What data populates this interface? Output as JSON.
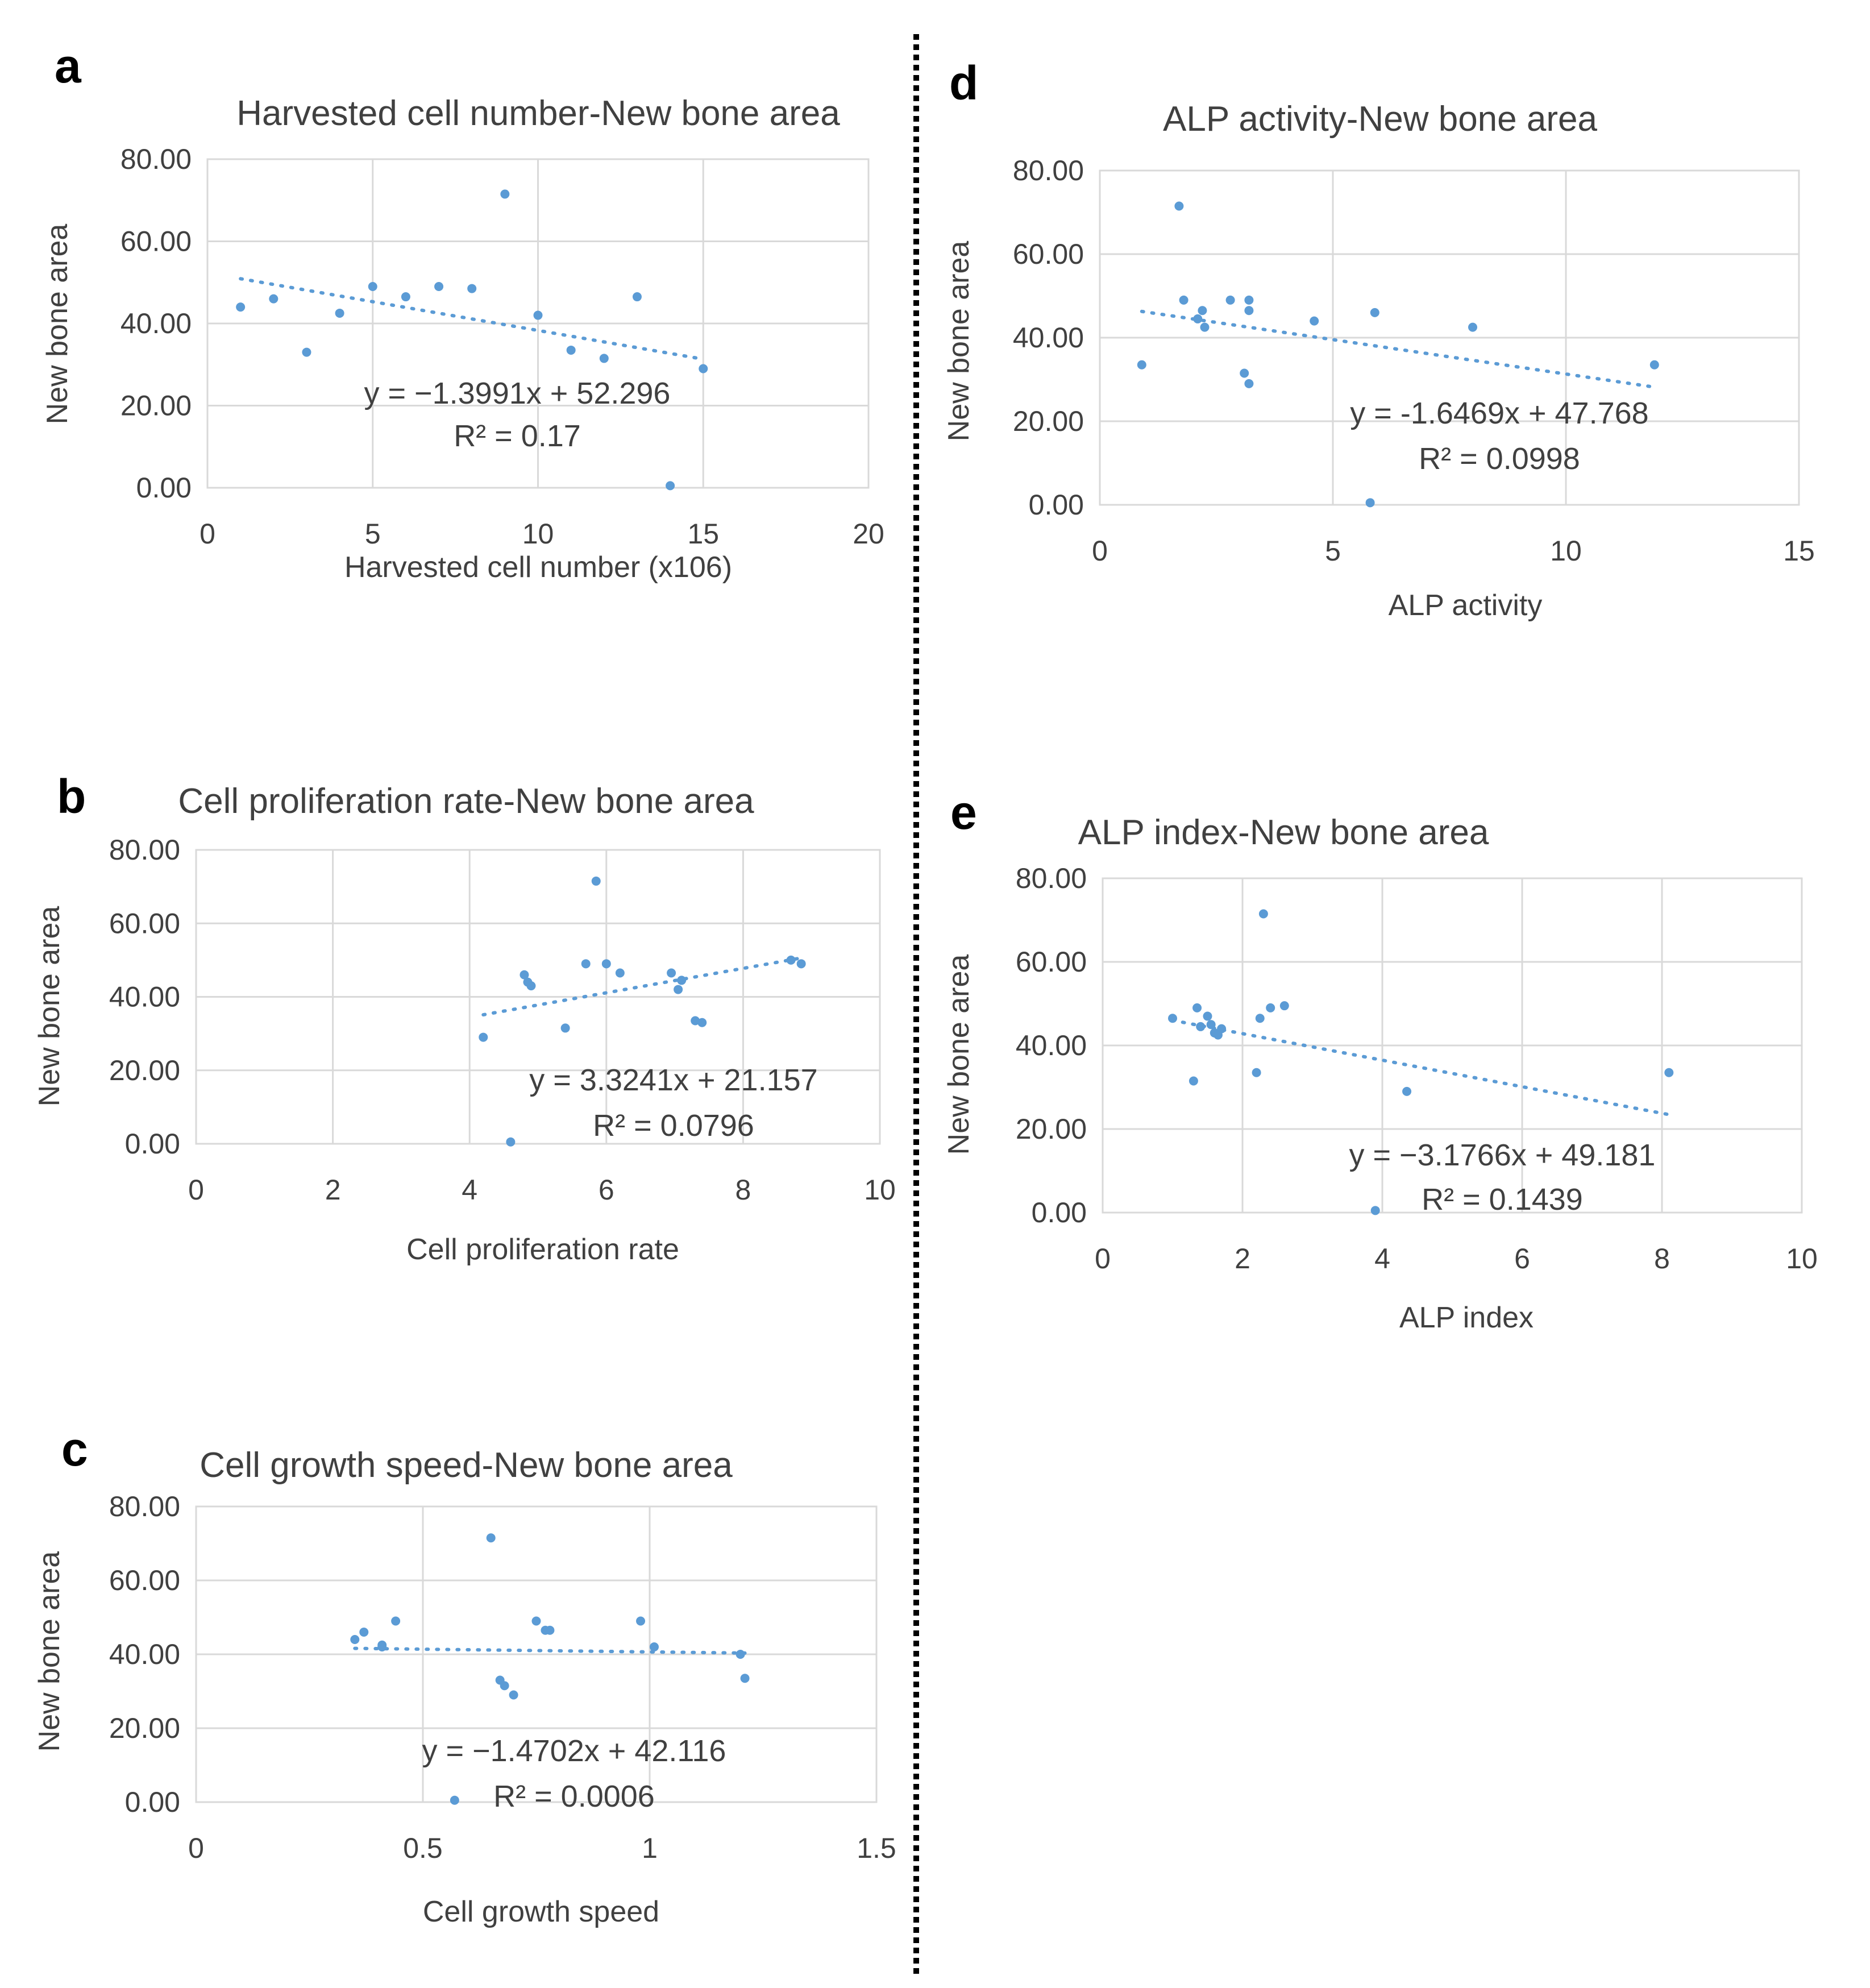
{
  "figure": {
    "point_color": "#5b9bd5",
    "trend_color": "#5b9bd5",
    "grid_color": "#d9d9d9",
    "text_color": "#404040"
  },
  "chart_data": [
    {
      "id": "a",
      "letter": "a",
      "type": "scatter",
      "title": "Harvested cell number-New bone area",
      "xlabel": "Harvested cell number (x106)",
      "ylabel": "New bone area",
      "xlim": [
        0,
        20
      ],
      "ylim": [
        0,
        80
      ],
      "xticks": [
        0,
        5,
        10,
        15,
        20
      ],
      "xtick_labels": [
        "0",
        "5",
        "10",
        "15",
        "20"
      ],
      "yticks": [
        0,
        20,
        40,
        60,
        80
      ],
      "ytick_labels": [
        "0.00",
        "20.00",
        "40.00",
        "60.00",
        "80.00"
      ],
      "points": [
        [
          1,
          44
        ],
        [
          2,
          46
        ],
        [
          3,
          33
        ],
        [
          4,
          42.5
        ],
        [
          5,
          49
        ],
        [
          6,
          46.5
        ],
        [
          7,
          49
        ],
        [
          8,
          48.5
        ],
        [
          9,
          71.5
        ],
        [
          10,
          42
        ],
        [
          11,
          33.5
        ],
        [
          12,
          31.5
        ],
        [
          13,
          46.5
        ],
        [
          14,
          0.5
        ],
        [
          15,
          29
        ]
      ],
      "trendline": {
        "slope": -1.3991,
        "intercept": 52.296,
        "x_range": [
          1,
          15
        ]
      },
      "equation": "y = −1.3991x + 52.296",
      "r2_label": "R² = 0.17"
    },
    {
      "id": "b",
      "letter": "b",
      "type": "scatter",
      "title": "Cell proliferation rate-New bone area",
      "xlabel": "Cell proliferation rate",
      "ylabel": "New bone area",
      "xlim": [
        0,
        10
      ],
      "ylim": [
        0,
        80
      ],
      "xticks": [
        0,
        2,
        4,
        6,
        8,
        10
      ],
      "xtick_labels": [
        "0",
        "2",
        "4",
        "6",
        "8",
        "10"
      ],
      "yticks": [
        0,
        20,
        40,
        60,
        80
      ],
      "ytick_labels": [
        "0.00",
        "20.00",
        "40.00",
        "60.00",
        "80.00"
      ],
      "points": [
        [
          4.2,
          29
        ],
        [
          4.6,
          0.5
        ],
        [
          4.8,
          46
        ],
        [
          4.85,
          44
        ],
        [
          4.9,
          43
        ],
        [
          5.4,
          31.5
        ],
        [
          5.7,
          49
        ],
        [
          5.85,
          71.5
        ],
        [
          6.0,
          49
        ],
        [
          6.2,
          46.5
        ],
        [
          6.95,
          46.5
        ],
        [
          7.05,
          42
        ],
        [
          7.1,
          44.5
        ],
        [
          7.3,
          33.5
        ],
        [
          7.4,
          33
        ],
        [
          8.7,
          50
        ],
        [
          8.85,
          49
        ]
      ],
      "trendline": {
        "slope": 3.3241,
        "intercept": 21.157,
        "x_range": [
          4.2,
          8.85
        ]
      },
      "equation": "y = 3.3241x + 21.157",
      "r2_label": "R² = 0.0796"
    },
    {
      "id": "c",
      "letter": "c",
      "type": "scatter",
      "title": "Cell  growth speed-New bone area",
      "xlabel": "Cell growth speed",
      "ylabel": "New bone area",
      "xlim": [
        0,
        1.5
      ],
      "ylim": [
        0,
        80
      ],
      "xticks": [
        0,
        0.5,
        1,
        1.5
      ],
      "xtick_labels": [
        "0",
        "0.5",
        "1",
        "1.5"
      ],
      "yticks": [
        0,
        20,
        40,
        60,
        80
      ],
      "ytick_labels": [
        "0.00",
        "20.00",
        "40.00",
        "60.00",
        "80.00"
      ],
      "points": [
        [
          0.35,
          44
        ],
        [
          0.37,
          46
        ],
        [
          0.41,
          42.5
        ],
        [
          0.41,
          42
        ],
        [
          0.44,
          49
        ],
        [
          0.57,
          0.5
        ],
        [
          0.65,
          71.5
        ],
        [
          0.67,
          33
        ],
        [
          0.68,
          31.5
        ],
        [
          0.7,
          29
        ],
        [
          0.75,
          49
        ],
        [
          0.77,
          46.5
        ],
        [
          0.78,
          46.5
        ],
        [
          0.98,
          49
        ],
        [
          1.01,
          42
        ],
        [
          1.2,
          40
        ],
        [
          1.21,
          33.5
        ]
      ],
      "trendline": {
        "slope": -1.4702,
        "intercept": 42.116,
        "x_range": [
          0.35,
          1.21
        ]
      },
      "equation": "y = −1.4702x + 42.116",
      "r2_label": "R² = 0.0006"
    },
    {
      "id": "d",
      "letter": "d",
      "type": "scatter",
      "title": "ALP activity-New bone area",
      "xlabel": "ALP activity",
      "ylabel": "New bone area",
      "xlim": [
        0,
        15
      ],
      "ylim": [
        0,
        80
      ],
      "xticks": [
        0,
        5,
        10,
        15
      ],
      "xtick_labels": [
        "0",
        "5",
        "10",
        "15"
      ],
      "yticks": [
        0,
        20,
        40,
        60,
        80
      ],
      "ytick_labels": [
        "0.00",
        "20.00",
        "40.00",
        "60.00",
        "80.00"
      ],
      "points": [
        [
          0.9,
          33.5
        ],
        [
          1.7,
          71.5
        ],
        [
          1.8,
          49
        ],
        [
          2.1,
          44.5
        ],
        [
          2.2,
          46.5
        ],
        [
          2.25,
          42.5
        ],
        [
          2.8,
          49
        ],
        [
          3.1,
          31.5
        ],
        [
          3.2,
          29
        ],
        [
          3.2,
          46.5
        ],
        [
          3.2,
          49
        ],
        [
          4.6,
          44
        ],
        [
          5.8,
          0.5
        ],
        [
          5.9,
          46
        ],
        [
          8.0,
          42.5
        ],
        [
          11.9,
          33.5
        ]
      ],
      "trendline": {
        "slope": -1.6469,
        "intercept": 47.768,
        "x_range": [
          0.9,
          11.9
        ]
      },
      "equation": "y = -1.6469x + 47.768",
      "r2_label": "R² = 0.0998"
    },
    {
      "id": "e",
      "letter": "e",
      "type": "scatter",
      "title": "ALP index-New bone area",
      "xlabel": "ALP index",
      "ylabel": "New bone area",
      "xlim": [
        0,
        10
      ],
      "ylim": [
        0,
        80
      ],
      "xticks": [
        0,
        2,
        4,
        6,
        8,
        10
      ],
      "xtick_labels": [
        "0",
        "2",
        "4",
        "6",
        "8",
        "10"
      ],
      "yticks": [
        0,
        20,
        40,
        60,
        80
      ],
      "ytick_labels": [
        "0.00",
        "20.00",
        "40.00",
        "60.00",
        "80.00"
      ],
      "points": [
        [
          1.0,
          46.5
        ],
        [
          1.3,
          31.5
        ],
        [
          1.35,
          49
        ],
        [
          1.4,
          44.5
        ],
        [
          1.5,
          47
        ],
        [
          1.55,
          45
        ],
        [
          1.6,
          43
        ],
        [
          1.65,
          42.5
        ],
        [
          1.7,
          44
        ],
        [
          2.2,
          33.5
        ],
        [
          2.25,
          46.5
        ],
        [
          2.3,
          71.5
        ],
        [
          2.4,
          49
        ],
        [
          2.6,
          49.5
        ],
        [
          3.9,
          0.5
        ],
        [
          4.35,
          29
        ],
        [
          8.1,
          33.5
        ]
      ],
      "trendline": {
        "slope": -3.1766,
        "intercept": 49.181,
        "x_range": [
          1.0,
          8.1
        ]
      },
      "equation": "y = −3.1766x + 49.181",
      "r2_label": "R² = 0.1439"
    }
  ]
}
